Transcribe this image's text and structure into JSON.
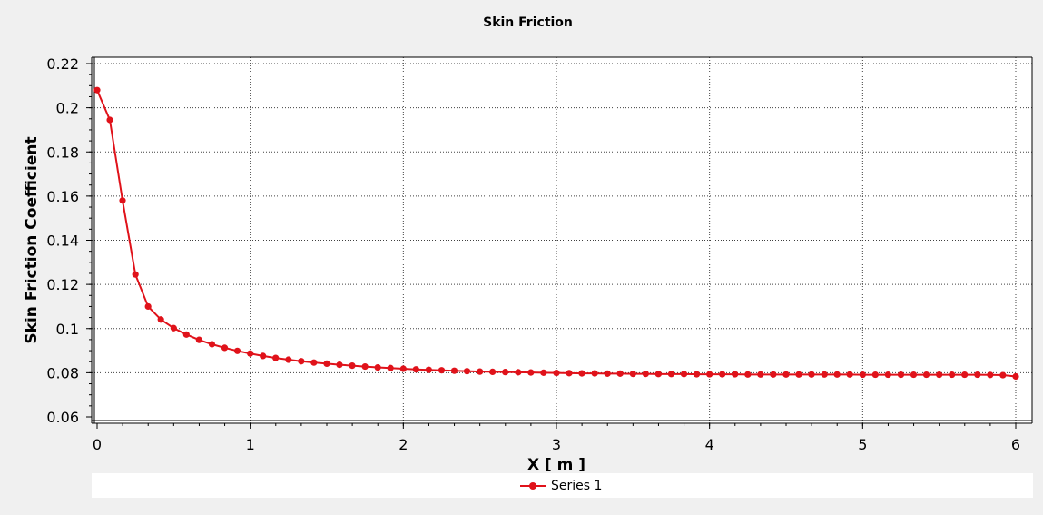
{
  "chart_data": {
    "type": "line",
    "title": "Skin Friction",
    "xlabel": "X [ m ]",
    "ylabel": "Skin Friction Coefficient",
    "xlim": [
      0,
      6
    ],
    "ylim": [
      0.06,
      0.22
    ],
    "xticks": [
      "0",
      "1",
      "2",
      "3",
      "4",
      "5",
      "6"
    ],
    "yticks": [
      "0.06",
      "0.08",
      "0.1",
      "0.12",
      "0.14",
      "0.16",
      "0.18",
      "0.2",
      "0.22"
    ],
    "grid": true,
    "legend_position": "bottom",
    "series": [
      {
        "name": "Series 1",
        "color": "#e0121a",
        "x": [
          0,
          0.083,
          0.166,
          0.25,
          0.333,
          0.416,
          0.5,
          0.583,
          0.666,
          0.75,
          0.833,
          0.916,
          1.0,
          1.083,
          1.166,
          1.25,
          1.333,
          1.416,
          1.5,
          1.583,
          1.666,
          1.75,
          1.833,
          1.916,
          2.0,
          2.083,
          2.166,
          2.25,
          2.333,
          2.416,
          2.5,
          2.583,
          2.666,
          2.75,
          2.833,
          2.916,
          3.0,
          3.083,
          3.166,
          3.25,
          3.333,
          3.416,
          3.5,
          3.583,
          3.666,
          3.75,
          3.833,
          3.916,
          4.0,
          4.083,
          4.166,
          4.25,
          4.333,
          4.416,
          4.5,
          4.583,
          4.666,
          4.75,
          4.833,
          4.916,
          5.0,
          5.083,
          5.166,
          5.25,
          5.333,
          5.416,
          5.5,
          5.583,
          5.666,
          5.75,
          5.833,
          5.916,
          6.0
        ],
        "y": [
          0.208,
          0.1945,
          0.158,
          0.1245,
          0.11,
          0.1041,
          0.1002,
          0.0973,
          0.0949,
          0.0929,
          0.0913,
          0.0899,
          0.0887,
          0.0876,
          0.0867,
          0.0859,
          0.0852,
          0.0846,
          0.0841,
          0.0836,
          0.0832,
          0.0828,
          0.0824,
          0.0821,
          0.0818,
          0.0815,
          0.0813,
          0.0811,
          0.0809,
          0.0807,
          0.0805,
          0.0804,
          0.0803,
          0.0802,
          0.0801,
          0.08,
          0.0799,
          0.0798,
          0.0797,
          0.0797,
          0.0796,
          0.0796,
          0.0795,
          0.0795,
          0.0794,
          0.0794,
          0.0794,
          0.0793,
          0.0793,
          0.0793,
          0.0793,
          0.0792,
          0.0792,
          0.0792,
          0.0792,
          0.0792,
          0.0792,
          0.0792,
          0.0792,
          0.0792,
          0.0791,
          0.0791,
          0.0791,
          0.0791,
          0.0791,
          0.0791,
          0.0791,
          0.0791,
          0.0791,
          0.0791,
          0.079,
          0.0789,
          0.0783
        ]
      }
    ]
  },
  "legend": {
    "items": [
      {
        "label": "Series 1"
      }
    ]
  }
}
